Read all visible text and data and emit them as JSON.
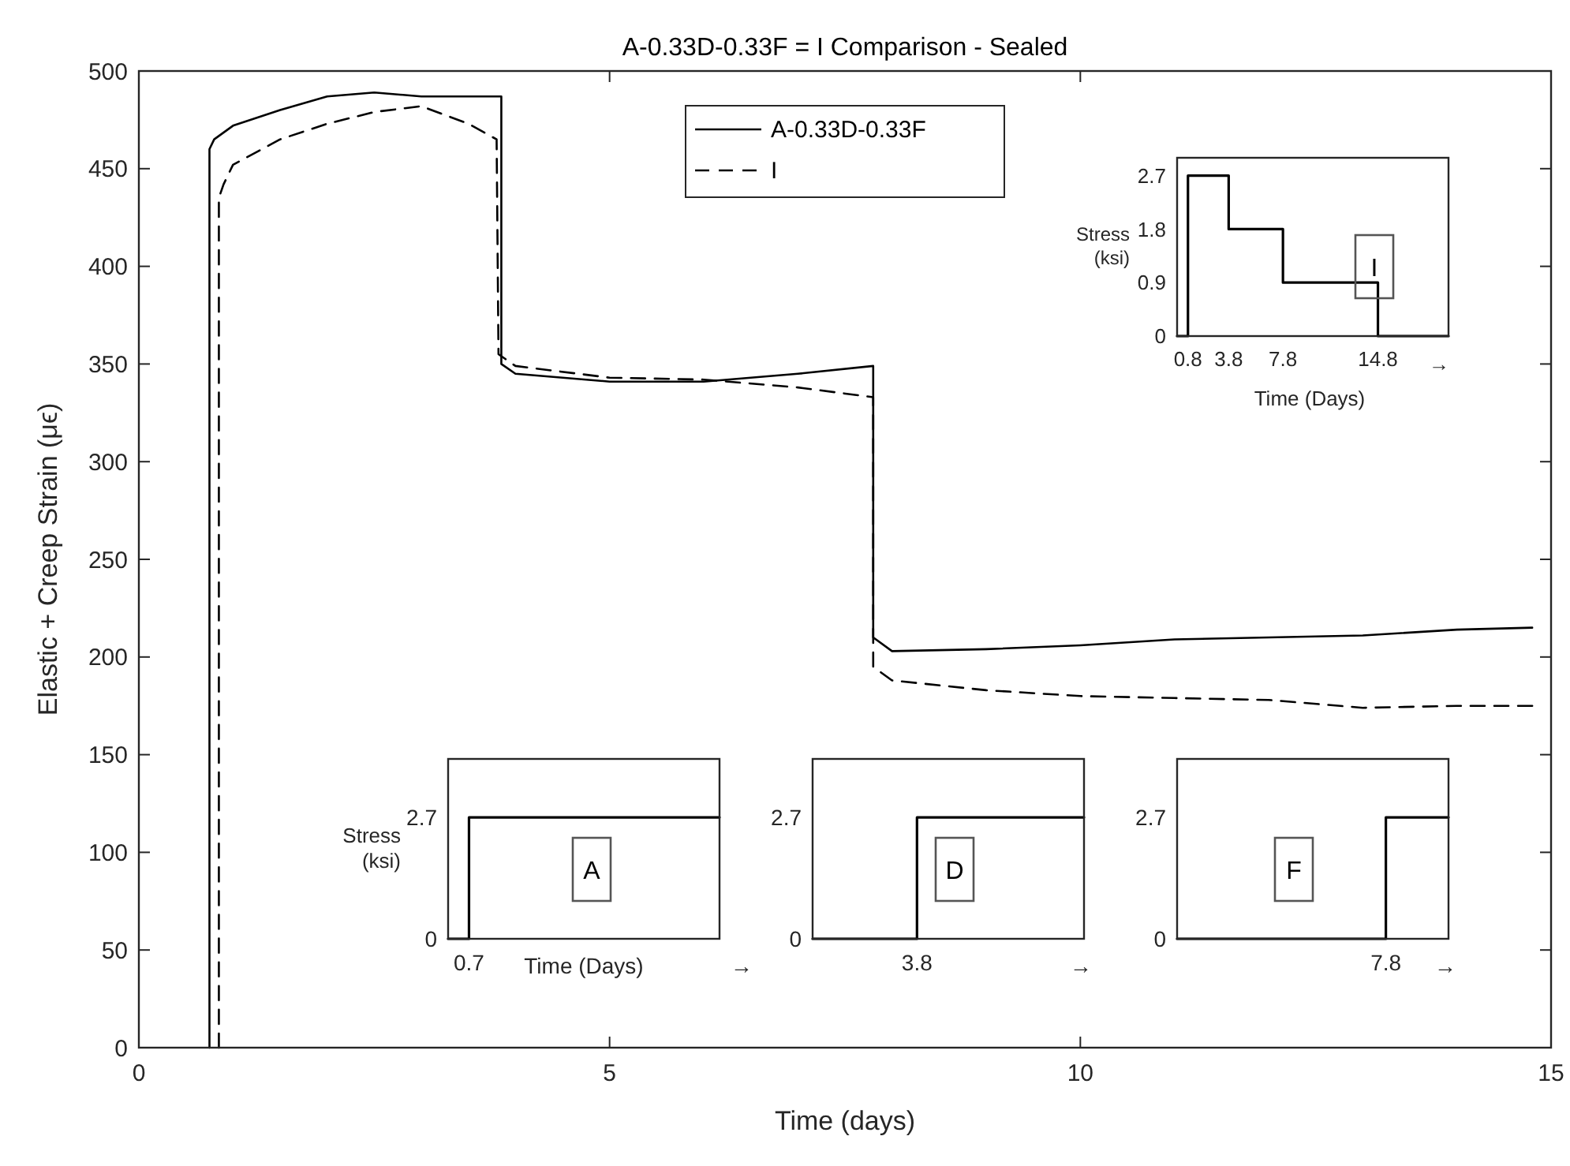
{
  "chart_data": [
    {
      "type": "line",
      "title": "A-0.33D-0.33F = I Comparison - Sealed",
      "xlabel": "Time (days)",
      "ylabel": "Elastic + Creep Strain (μϵ)",
      "xlim": [
        0,
        15
      ],
      "xticks": [
        0,
        5,
        10,
        15
      ],
      "ylim": [
        0,
        500
      ],
      "yticks": [
        0,
        50,
        100,
        150,
        200,
        250,
        300,
        350,
        400,
        450,
        500
      ],
      "legend": "top",
      "grid": false,
      "series": [
        {
          "name": "A-0.33D-0.33F",
          "color": "#000000",
          "line_style": "solid",
          "x": [
            0.75,
            0.75,
            0.8,
            1.0,
            1.5,
            2.0,
            2.5,
            3.0,
            3.5,
            3.85,
            3.85,
            4.0,
            5,
            6,
            7,
            7.8,
            7.8,
            8,
            9,
            10,
            11,
            12,
            13,
            14,
            14.8
          ],
          "values": [
            0,
            460,
            465,
            472,
            480,
            487,
            489,
            487,
            487,
            487,
            350,
            345,
            341,
            341,
            345,
            349,
            210,
            203,
            204,
            206,
            209,
            210,
            211,
            214,
            215
          ]
        },
        {
          "name": "I",
          "color": "#000000",
          "line_style": "dashed",
          "x": [
            0.85,
            0.85,
            0.9,
            1.0,
            1.5,
            2.0,
            2.5,
            3.0,
            3.5,
            3.8,
            3.82,
            4.0,
            5,
            6,
            7,
            7.8,
            7.8,
            8,
            9,
            10,
            11,
            12,
            13,
            14,
            14.8
          ],
          "values": [
            0,
            435,
            442,
            452,
            465,
            473,
            479,
            482,
            473,
            465,
            355,
            349,
            343,
            342,
            338,
            333,
            195,
            188,
            183,
            180,
            179,
            178,
            174,
            175,
            175
          ]
        }
      ]
    },
    {
      "type": "step",
      "xlabel": "Time (Days)",
      "ylabel": "Stress (ksi)",
      "xlim": [
        0,
        20
      ],
      "xticks": [
        0.8,
        3.8,
        7.8,
        14.8
      ],
      "ylim": [
        0,
        3
      ],
      "yticks": [
        0,
        0.9,
        1.8,
        2.7
      ],
      "annotations": [
        "I",
        "→"
      ],
      "series": [
        {
          "color": "#000000",
          "x": [
            0,
            0.8,
            3.8,
            7.8,
            14.8,
            20
          ],
          "values": [
            0,
            2.7,
            1.8,
            0.9,
            0,
            0
          ]
        }
      ]
    },
    {
      "type": "step",
      "xlabel": "Time (Days)",
      "ylabel": "Stress (ksi)",
      "categories": [
        null,
        "0.7",
        null,
        null,
        null,
        null,
        null,
        null,
        null,
        null,
        null,
        null,
        null,
        null
      ],
      "ylim": [
        0,
        4
      ],
      "yticks": [
        0,
        2.7
      ],
      "annotations": [
        "A",
        "→"
      ],
      "series": [
        {
          "color": "#000000",
          "values": [
            0,
            2.7,
            2.7,
            2.7,
            2.7,
            2.7,
            2.7,
            2.7,
            2.7,
            2.7,
            2.7,
            2.7,
            2.7,
            2.7
          ]
        }
      ]
    },
    {
      "type": "step",
      "categories": [
        null,
        null,
        null,
        null,
        null,
        "3.8",
        null,
        null,
        null,
        null,
        null,
        null,
        null,
        null
      ],
      "ylim": [
        0,
        4
      ],
      "yticks": [
        0,
        2.7
      ],
      "annotations": [
        "D",
        "→"
      ],
      "series": [
        {
          "color": "#000000",
          "values": [
            0,
            0,
            0,
            0,
            0,
            2.7,
            2.7,
            2.7,
            2.7,
            2.7,
            2.7,
            2.7,
            2.7,
            2.7
          ]
        }
      ]
    },
    {
      "type": "step",
      "categories": [
        null,
        null,
        null,
        null,
        null,
        null,
        null,
        null,
        null,
        null,
        "7.8",
        null,
        null,
        null
      ],
      "ylim": [
        0,
        4
      ],
      "yticks": [
        0,
        2.7
      ],
      "annotations": [
        "F",
        "→"
      ],
      "series": [
        {
          "color": "#000000",
          "values": [
            0,
            0,
            0,
            0,
            0,
            0,
            0,
            0,
            0,
            0,
            2.7,
            2.7,
            2.7,
            2.7
          ]
        }
      ]
    }
  ]
}
